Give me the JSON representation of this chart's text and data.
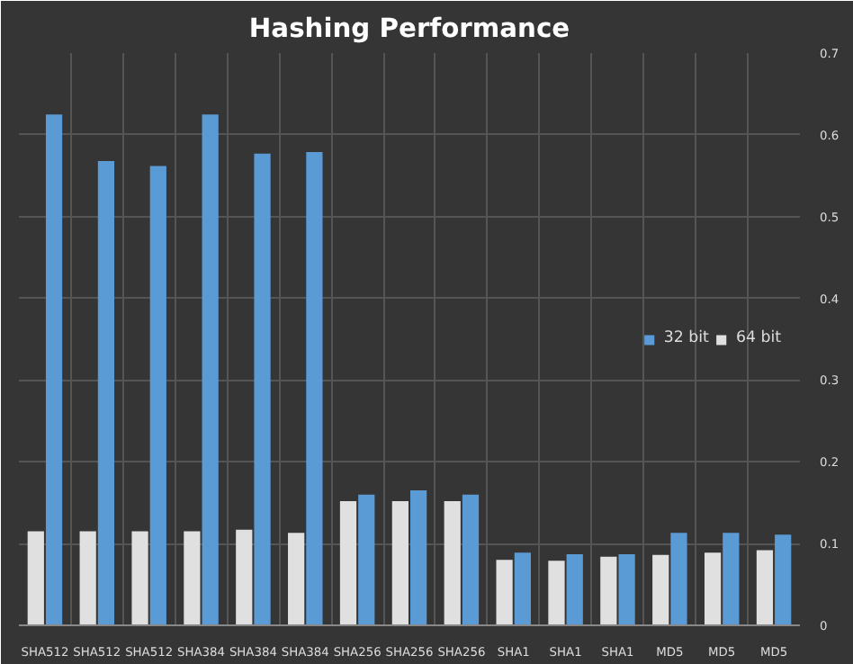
{
  "chart_data": {
    "type": "bar",
    "title": "Hashing Performance",
    "categories": [
      "SHA512",
      "SHA512",
      "SHA512",
      "SHA384",
      "SHA384",
      "SHA384",
      "SHA256",
      "SHA256",
      "SHA256",
      "SHA1",
      "SHA1",
      "SHA1",
      "MD5",
      "MD5",
      "MD5"
    ],
    "series": [
      {
        "name": "64 bit",
        "color": "#e0e0e0",
        "values": [
          0.115,
          0.115,
          0.115,
          0.115,
          0.117,
          0.113,
          0.152,
          0.152,
          0.152,
          0.08,
          0.079,
          0.084,
          0.086,
          0.089,
          0.092
        ]
      },
      {
        "name": "32 bit",
        "color": "#5b9bd5",
        "values": [
          0.625,
          0.568,
          0.562,
          0.625,
          0.577,
          0.579,
          0.16,
          0.165,
          0.16,
          0.089,
          0.087,
          0.087,
          0.113,
          0.113,
          0.111
        ]
      }
    ],
    "ylim": [
      0,
      0.7
    ],
    "yticks": [
      0,
      0.1,
      0.2,
      0.3,
      0.4,
      0.5,
      0.6,
      0.7
    ],
    "grid": true,
    "legend": "right"
  }
}
